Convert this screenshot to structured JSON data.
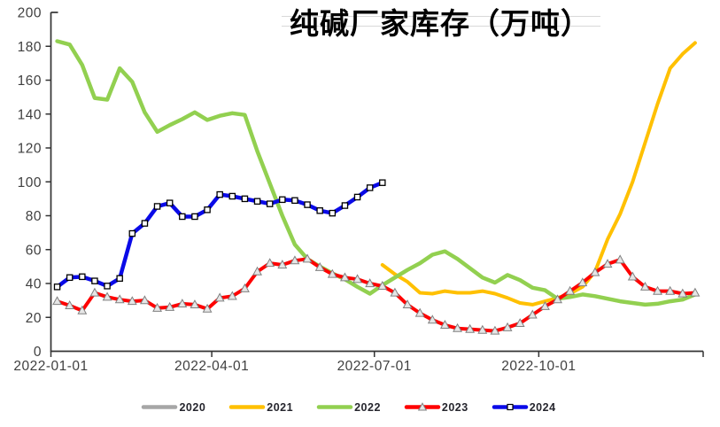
{
  "page": {
    "background": "#ffffff"
  },
  "chart_data": {
    "type": "line",
    "title": "纯碱厂家库存（万吨）",
    "title_color": "#000000",
    "axis_color": "#333333",
    "tick_label_color": "#3f3f3f",
    "grid": "off",
    "legend_position": "bottom",
    "x_axis": {
      "range_days": [
        0,
        365
      ],
      "ticks": [
        {
          "label": "2022-01-01",
          "day": 0
        },
        {
          "label": "2022-04-01",
          "day": 90
        },
        {
          "label": "2022-07-01",
          "day": 181
        },
        {
          "label": "2022-10-01",
          "day": 273
        },
        {
          "label": "",
          "day": 365
        }
      ]
    },
    "y_axis": {
      "min": 0,
      "max": 200,
      "step": 20
    },
    "series": [
      {
        "name": "2020",
        "color": "#A6A6A6",
        "line_width": 4,
        "marker": "none",
        "start_week": 0,
        "values": []
      },
      {
        "name": "2021",
        "color": "#FFC000",
        "line_width": 4,
        "marker": "none",
        "start_week": 26,
        "values": [
          51,
          45.5,
          41,
          34.5,
          34,
          35.5,
          34.5,
          34.5,
          35.5,
          34,
          31.5,
          28.5,
          27.5,
          29.5,
          31.5,
          34,
          38,
          47,
          66,
          81,
          100,
          123,
          146,
          167,
          175.5,
          182
        ]
      },
      {
        "name": "2022",
        "color": "#92D050",
        "line_width": 4.5,
        "marker": "none",
        "start_week": 0,
        "values": [
          183,
          181,
          169,
          149.5,
          148.5,
          167,
          159,
          141,
          129.5,
          133.5,
          137,
          141,
          136.5,
          139,
          140.5,
          139.5,
          118,
          99,
          80,
          63,
          54.5,
          50,
          46,
          42.5,
          38,
          34,
          39,
          43.5,
          48,
          52,
          57,
          59,
          54.5,
          49,
          43.5,
          40.5,
          45,
          42,
          37.5,
          36,
          31,
          32,
          33.5,
          32.5,
          31,
          29.5,
          28.5,
          27.5,
          28,
          29.5,
          30.5,
          33.5
        ]
      },
      {
        "name": "2023",
        "color": "#FF0000",
        "line_width": 4,
        "marker": "triangle",
        "marker_fill": "#E6E6E6",
        "marker_stroke": "#808080",
        "start_week": 0,
        "values": [
          29.5,
          27,
          24,
          34.5,
          32,
          30.5,
          29.5,
          30,
          25.5,
          26,
          28,
          27.5,
          25,
          31.5,
          32.5,
          37,
          47,
          52,
          51,
          53.5,
          54.5,
          49.5,
          45.5,
          43.5,
          42.5,
          40,
          38.5,
          34.5,
          27.5,
          22.5,
          18.5,
          15.5,
          13.5,
          13,
          12.5,
          12,
          14,
          16.5,
          21.5,
          26.5,
          30.5,
          35.5,
          40.5,
          46.5,
          51.5,
          54,
          44,
          38,
          35.5,
          35.5,
          34,
          34.5
        ]
      },
      {
        "name": "2024",
        "color": "#0A0AE8",
        "line_width": 4.5,
        "marker": "square",
        "marker_fill": "#FFFFFF",
        "marker_stroke": "#000000",
        "start_week": 0,
        "values": [
          38,
          43.5,
          44,
          41.5,
          38.5,
          43,
          69.5,
          75.5,
          85.5,
          87.5,
          79.5,
          79.5,
          83.5,
          92.5,
          91.5,
          90,
          88.5,
          87,
          89.5,
          89,
          86.5,
          83,
          81.5,
          86,
          91,
          96.5,
          99.5
        ]
      }
    ]
  }
}
